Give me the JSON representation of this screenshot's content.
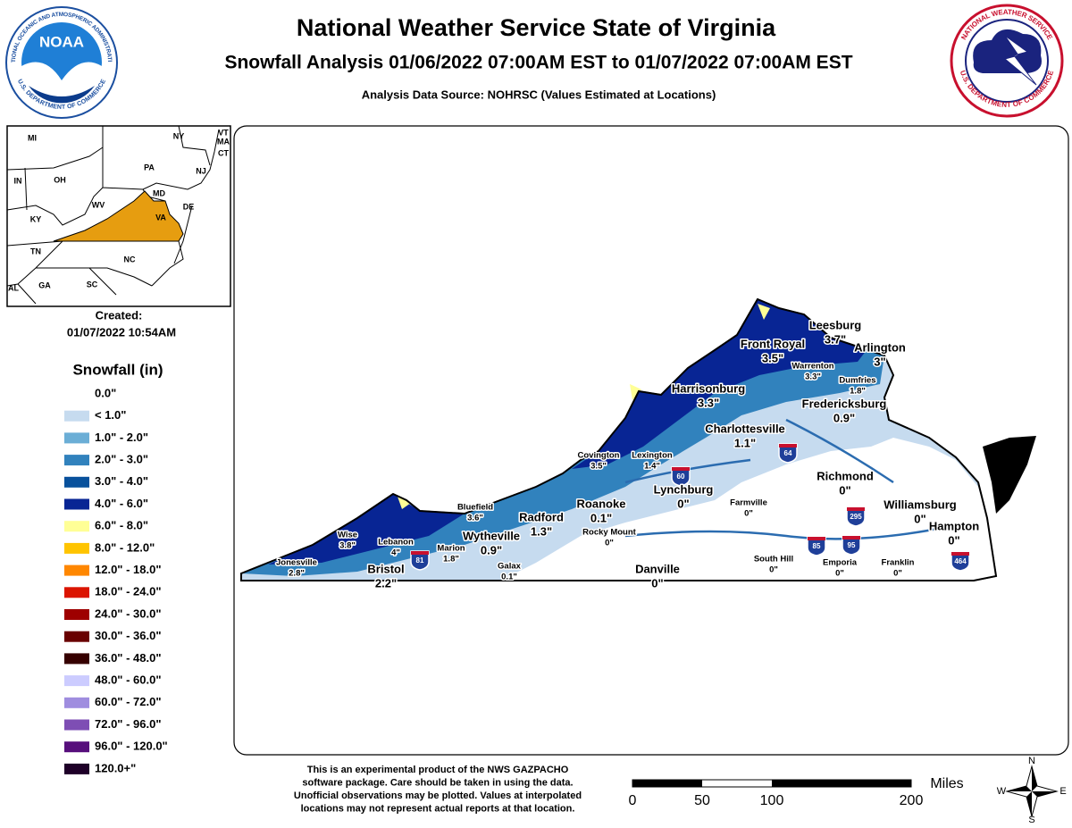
{
  "header": {
    "title": "National Weather Service State of Virginia",
    "subtitle": "Snowfall Analysis 01/06/2022 07:00AM EST to 01/07/2022 07:00AM EST",
    "source": "Analysis Data Source: NOHRSC (Values Estimated at Locations)"
  },
  "logos": {
    "noaa": {
      "name": "NOAA",
      "ring_top": "NATIONAL OCEANIC AND ATMOSPHERIC ADMINISTRATION",
      "ring_bottom": "U.S. DEPARTMENT OF COMMERCE"
    },
    "nws": {
      "ring_top": "NATIONAL WEATHER SERVICE",
      "ring_bottom": "U.S. DEPARTMENT OF COMMERCE"
    }
  },
  "inset": {
    "states": [
      "MI",
      "NY",
      "VT",
      "MA",
      "CT",
      "PA",
      "NJ",
      "IN",
      "OH",
      "MD",
      "DE",
      "WV",
      "VA",
      "KY",
      "TN",
      "NC",
      "AL",
      "GA",
      "SC"
    ]
  },
  "created": {
    "label": "Created:",
    "date": "01/07/2022 10:54AM"
  },
  "legend": {
    "title": "Snowfall (in)",
    "items": [
      {
        "label": "0.0\"",
        "color": "#ffffff"
      },
      {
        "label": "< 1.0\"",
        "color": "#c6dbef"
      },
      {
        "label": "1.0\" - 2.0\"",
        "color": "#6baed6"
      },
      {
        "label": "2.0\" - 3.0\"",
        "color": "#3182bd"
      },
      {
        "label": "3.0\" - 4.0\"",
        "color": "#08519c"
      },
      {
        "label": "4.0\" - 6.0\"",
        "color": "#082594"
      },
      {
        "label": "6.0\" - 8.0\"",
        "color": "#ffff96"
      },
      {
        "label": "8.0\" - 12.0\"",
        "color": "#ffc400"
      },
      {
        "label": "12.0\" - 18.0\"",
        "color": "#ff8700"
      },
      {
        "label": "18.0\" - 24.0\"",
        "color": "#db1400"
      },
      {
        "label": "24.0\" - 30.0\"",
        "color": "#9e0000"
      },
      {
        "label": "30.0\" - 36.0\"",
        "color": "#690000"
      },
      {
        "label": "36.0\" - 48.0\"",
        "color": "#360000"
      },
      {
        "label": "48.0\" - 60.0\"",
        "color": "#ccccff"
      },
      {
        "label": "60.0\" - 72.0\"",
        "color": "#9f8ddf"
      },
      {
        "label": "72.0\" - 96.0\"",
        "color": "#7e4eb4"
      },
      {
        "label": "96.0\" - 120.0\"",
        "color": "#570f7c"
      },
      {
        "label": "120.0+\"",
        "color": "#1e0028"
      }
    ]
  },
  "cities": [
    {
      "name": "Leesburg",
      "value": "3.7\""
    },
    {
      "name": "Front Royal",
      "value": "3.5\""
    },
    {
      "name": "Arlington",
      "value": "3\""
    },
    {
      "name": "Warrenton",
      "value": "3.3\""
    },
    {
      "name": "Dumfries",
      "value": "1.8\""
    },
    {
      "name": "Harrisonburg",
      "value": "3.3\""
    },
    {
      "name": "Fredericksburg",
      "value": "0.9\""
    },
    {
      "name": "Charlottesville",
      "value": "1.1\""
    },
    {
      "name": "Covington",
      "value": "3.5\""
    },
    {
      "name": "Lexington",
      "value": "1.4\""
    },
    {
      "name": "Lynchburg",
      "value": "0\""
    },
    {
      "name": "Richmond",
      "value": "0\""
    },
    {
      "name": "Farmville",
      "value": "0\""
    },
    {
      "name": "Williamsburg",
      "value": "0\""
    },
    {
      "name": "Bluefield",
      "value": "3.6\""
    },
    {
      "name": "Roanoke",
      "value": "0.1\""
    },
    {
      "name": "Radford",
      "value": "1.3\""
    },
    {
      "name": "Rocky Mount",
      "value": "0\""
    },
    {
      "name": "Hampton",
      "value": "0\""
    },
    {
      "name": "Wise",
      "value": "3.8\""
    },
    {
      "name": "Lebanon",
      "value": "4\""
    },
    {
      "name": "Wytheville",
      "value": "0.9\""
    },
    {
      "name": "Marion",
      "value": "1.8\""
    },
    {
      "name": "Galax",
      "value": "0.1\""
    },
    {
      "name": "South Hill",
      "value": "0\""
    },
    {
      "name": "Emporia",
      "value": "0\""
    },
    {
      "name": "Franklin",
      "value": "0\""
    },
    {
      "name": "Jonesville",
      "value": "2.8\""
    },
    {
      "name": "Bristol",
      "value": "2.2\""
    },
    {
      "name": "Danville",
      "value": "0\""
    }
  ],
  "interstates": [
    "81",
    "60",
    "64",
    "295",
    "85",
    "95",
    "464"
  ],
  "disclaimer": [
    "This is an experimental product of the NWS GAZPACHO",
    "software package. Care should be taken in using the data.",
    "Unofficial observations may be plotted. Values at interpolated",
    "locations may not represent actual reports at that location."
  ],
  "scale": {
    "labels": [
      "0",
      "50",
      "100",
      "200"
    ],
    "unit": "Miles"
  },
  "compass": {
    "n": "N",
    "s": "S",
    "e": "E",
    "w": "W"
  }
}
